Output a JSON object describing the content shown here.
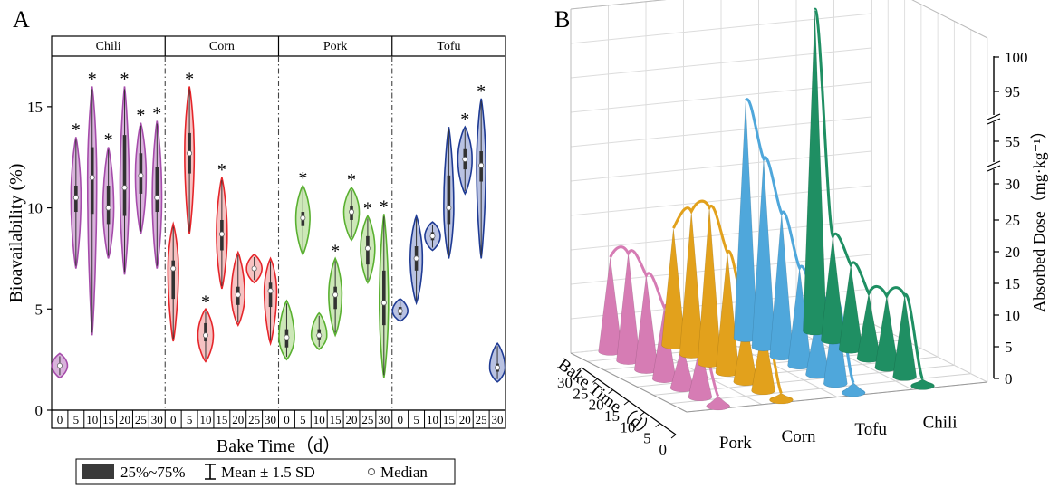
{
  "chart_data": [
    {
      "type": "violin",
      "panel_label": "A",
      "ylabel": "Bioavailability (%)",
      "xlabel": "Bake Time（d）",
      "ylim": [
        0,
        17.5
      ],
      "yticks": [
        0,
        5,
        10,
        15
      ],
      "categories": [
        "0",
        "5",
        "10",
        "15",
        "20",
        "25",
        "30"
      ],
      "legend": {
        "iqr": "25%~75%",
        "sd": "Mean ± 1.5 SD",
        "median": "Median"
      },
      "groups": [
        {
          "name": "Chili",
          "color": "#A54BAA",
          "fill": "#D9B3DC",
          "medians": [
            2.2,
            10.5,
            11.5,
            10.0,
            11.0,
            11.6,
            10.5
          ],
          "q1": [
            2.1,
            9.8,
            9.7,
            9.2,
            9.6,
            10.7,
            9.8
          ],
          "q3": [
            2.3,
            11.1,
            13.0,
            11.1,
            13.6,
            12.7,
            12.0
          ],
          "min": [
            1.6,
            7.0,
            3.7,
            7.5,
            6.7,
            8.7,
            7.0
          ],
          "max": [
            2.8,
            13.5,
            16.0,
            13.0,
            16.0,
            14.2,
            14.3
          ],
          "sig": [
            false,
            true,
            true,
            true,
            true,
            true,
            true
          ]
        },
        {
          "name": "Corn",
          "color": "#E5252A",
          "fill": "#F6C2C2",
          "medians": [
            7.0,
            12.7,
            3.7,
            8.7,
            5.7,
            7.0,
            5.9
          ],
          "q1": [
            5.5,
            11.7,
            3.4,
            7.9,
            5.2,
            6.9,
            5.1
          ],
          "q3": [
            7.4,
            13.7,
            4.3,
            9.4,
            6.1,
            7.1,
            6.3
          ],
          "min": [
            3.4,
            8.7,
            2.4,
            6.0,
            4.2,
            6.3,
            3.3
          ],
          "max": [
            9.2,
            16.0,
            5.0,
            11.5,
            7.8,
            7.7,
            7.5
          ],
          "sig": [
            false,
            true,
            true,
            true,
            false,
            false,
            false
          ]
        },
        {
          "name": "Pork",
          "color": "#59B030",
          "fill": "#CDE8B8",
          "medians": [
            3.6,
            9.5,
            3.7,
            5.7,
            9.8,
            8.0,
            5.3
          ],
          "q1": [
            3.1,
            9.1,
            3.5,
            5.0,
            9.4,
            7.2,
            4.2
          ],
          "q3": [
            4.0,
            9.8,
            4.0,
            6.1,
            10.1,
            8.6,
            6.9
          ],
          "min": [
            2.5,
            7.7,
            3.0,
            3.7,
            8.4,
            6.3,
            1.6
          ],
          "max": [
            5.4,
            11.1,
            4.8,
            7.5,
            11.0,
            9.6,
            9.7
          ],
          "sig": [
            false,
            true,
            false,
            true,
            true,
            true,
            true
          ]
        },
        {
          "name": "Tofu",
          "color": "#1E3A93",
          "fill": "#B9C2E2",
          "medians": [
            4.9,
            7.5,
            8.6,
            10.0,
            12.4,
            12.1,
            2.1
          ],
          "q1": [
            4.7,
            6.9,
            8.4,
            9.2,
            11.9,
            11.3,
            1.9
          ],
          "q3": [
            5.1,
            8.1,
            8.8,
            11.6,
            12.9,
            12.8,
            2.3
          ],
          "min": [
            4.4,
            5.3,
            7.9,
            7.5,
            10.7,
            7.5,
            1.4
          ],
          "max": [
            5.5,
            9.6,
            9.3,
            14.0,
            14.0,
            15.4,
            3.3
          ],
          "sig": [
            false,
            false,
            false,
            false,
            true,
            true,
            false
          ]
        }
      ]
    },
    {
      "type": "3d-peaks",
      "panel_label": "B",
      "zlabel": "Absorbed Dose（mg·kg⁻¹）",
      "xlabel": "Bake Time（d）",
      "bake_times": [
        0,
        5,
        10,
        15,
        20,
        25,
        30
      ],
      "z_ticks": [
        "0",
        "5",
        "10",
        "15",
        "20",
        "25",
        "30",
        "55",
        "95",
        "100"
      ],
      "time_ticks": [
        "0",
        "5",
        "10",
        "15",
        "20",
        "25",
        "30"
      ],
      "series": [
        {
          "name": "Pork",
          "color": "#D67CB4",
          "values": [
            1.5,
            8.0,
            6.5,
            11.0,
            14.5,
            16.5,
            14.5
          ]
        },
        {
          "name": "Corn",
          "color": "#E2A11C",
          "values": [
            1.0,
            10.5,
            10.0,
            18.5,
            24.0,
            22.0,
            18.0
          ]
        },
        {
          "name": "Tofu",
          "color": "#4FA7DB",
          "values": [
            1.5,
            13.0,
            9.5,
            15.0,
            22.0,
            29.0,
            55.0
          ]
        },
        {
          "name": "Chili",
          "color": "#1F8F63",
          "values": [
            1.0,
            12.5,
            11.0,
            10.0,
            13.0,
            16.0,
            100.0
          ]
        }
      ]
    }
  ]
}
